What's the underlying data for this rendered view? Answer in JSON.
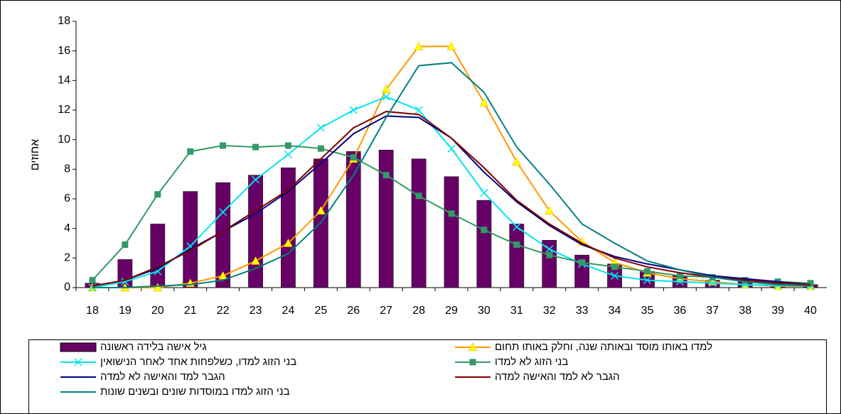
{
  "chart_data": {
    "type": "bar",
    "ylabel": "אחוזים",
    "categories": [
      "18",
      "19",
      "20",
      "21",
      "22",
      "23",
      "24",
      "25",
      "26",
      "27",
      "28",
      "29",
      "30",
      "31",
      "32",
      "33",
      "34",
      "35",
      "36",
      "37",
      "38",
      "39",
      "40"
    ],
    "ylim": [
      0,
      18
    ],
    "yticks": [
      0,
      2,
      4,
      6,
      8,
      10,
      12,
      14,
      16,
      18
    ],
    "grid": false,
    "series": [
      {
        "name": "גיל אישה בלידה ראשונה",
        "type": "bar",
        "color": "#660066",
        "values": [
          0.3,
          1.9,
          4.3,
          6.5,
          7.1,
          7.6,
          8.1,
          8.7,
          9.2,
          9.3,
          8.7,
          7.5,
          5.9,
          4.3,
          3.2,
          2.2,
          1.6,
          1.1,
          0.8,
          0.5,
          0.4,
          0.3,
          0.2
        ]
      },
      {
        "name": "למדו  באותו מוסד ובאותה שנה, וחלק באותו תחום",
        "type": "line",
        "color": "#ff9900",
        "marker": "triangle",
        "marker_color": "#ffff00",
        "values": [
          0,
          0,
          0,
          0.3,
          0.8,
          1.8,
          3.0,
          5.2,
          8.7,
          13.4,
          16.3,
          16.3,
          12.5,
          8.5,
          5.2,
          3.1,
          1.7,
          1.0,
          0.6,
          0.4,
          0.2,
          0.1,
          0.1
        ]
      },
      {
        "name": "בני הזוג למדו, כשלפחות אחד לאחר הנישואין",
        "type": "line",
        "color": "#00e5ee",
        "marker": "x",
        "marker_color": "#00e5ee",
        "values": [
          0,
          0.4,
          1.1,
          2.8,
          5.1,
          7.3,
          9.0,
          10.8,
          12.0,
          12.9,
          12.0,
          9.4,
          6.4,
          4.1,
          2.6,
          1.6,
          0.8,
          0.5,
          0.4,
          0.3,
          0.2,
          0.15,
          0.1
        ]
      },
      {
        "name": "בני הזוג לא למדו",
        "type": "line",
        "color": "#339966",
        "marker": "square",
        "marker_color": "#339966",
        "values": [
          0.5,
          2.9,
          6.3,
          9.2,
          9.6,
          9.5,
          9.6,
          9.4,
          8.8,
          7.6,
          6.2,
          5.0,
          3.9,
          2.9,
          2.2,
          1.7,
          1.4,
          1.1,
          0.8,
          0.7,
          0.5,
          0.4,
          0.3
        ]
      },
      {
        "name": "הגבר למד והאישה לא למדה",
        "type": "line",
        "color": "#000080",
        "values": [
          0.1,
          0.5,
          1.3,
          2.6,
          3.8,
          5.0,
          6.5,
          8.4,
          10.4,
          11.6,
          11.5,
          10.1,
          7.8,
          5.8,
          4.2,
          2.9,
          2.1,
          1.6,
          1.2,
          0.8,
          0.6,
          0.4,
          0.2
        ]
      },
      {
        "name": "הגבר לא למד והאישה למדה",
        "type": "line",
        "color": "#800000",
        "values": [
          0.1,
          0.5,
          1.4,
          2.5,
          3.8,
          5.2,
          6.6,
          8.7,
          10.8,
          11.9,
          11.7,
          10.1,
          8.1,
          5.9,
          4.3,
          3.0,
          2.0,
          1.4,
          1.0,
          0.7,
          0.5,
          0.3,
          0.2
        ]
      },
      {
        "name": "בני הזוג למדו במוסדות שונים ובשנים שונות",
        "type": "line",
        "color": "#008080",
        "values": [
          0,
          0,
          0.1,
          0.2,
          0.5,
          1.3,
          2.3,
          4.4,
          7.6,
          11.5,
          15.0,
          15.2,
          13.2,
          9.5,
          7.0,
          4.3,
          3.0,
          1.8,
          1.2,
          0.7,
          0.4,
          0.2,
          0.1
        ]
      }
    ]
  }
}
